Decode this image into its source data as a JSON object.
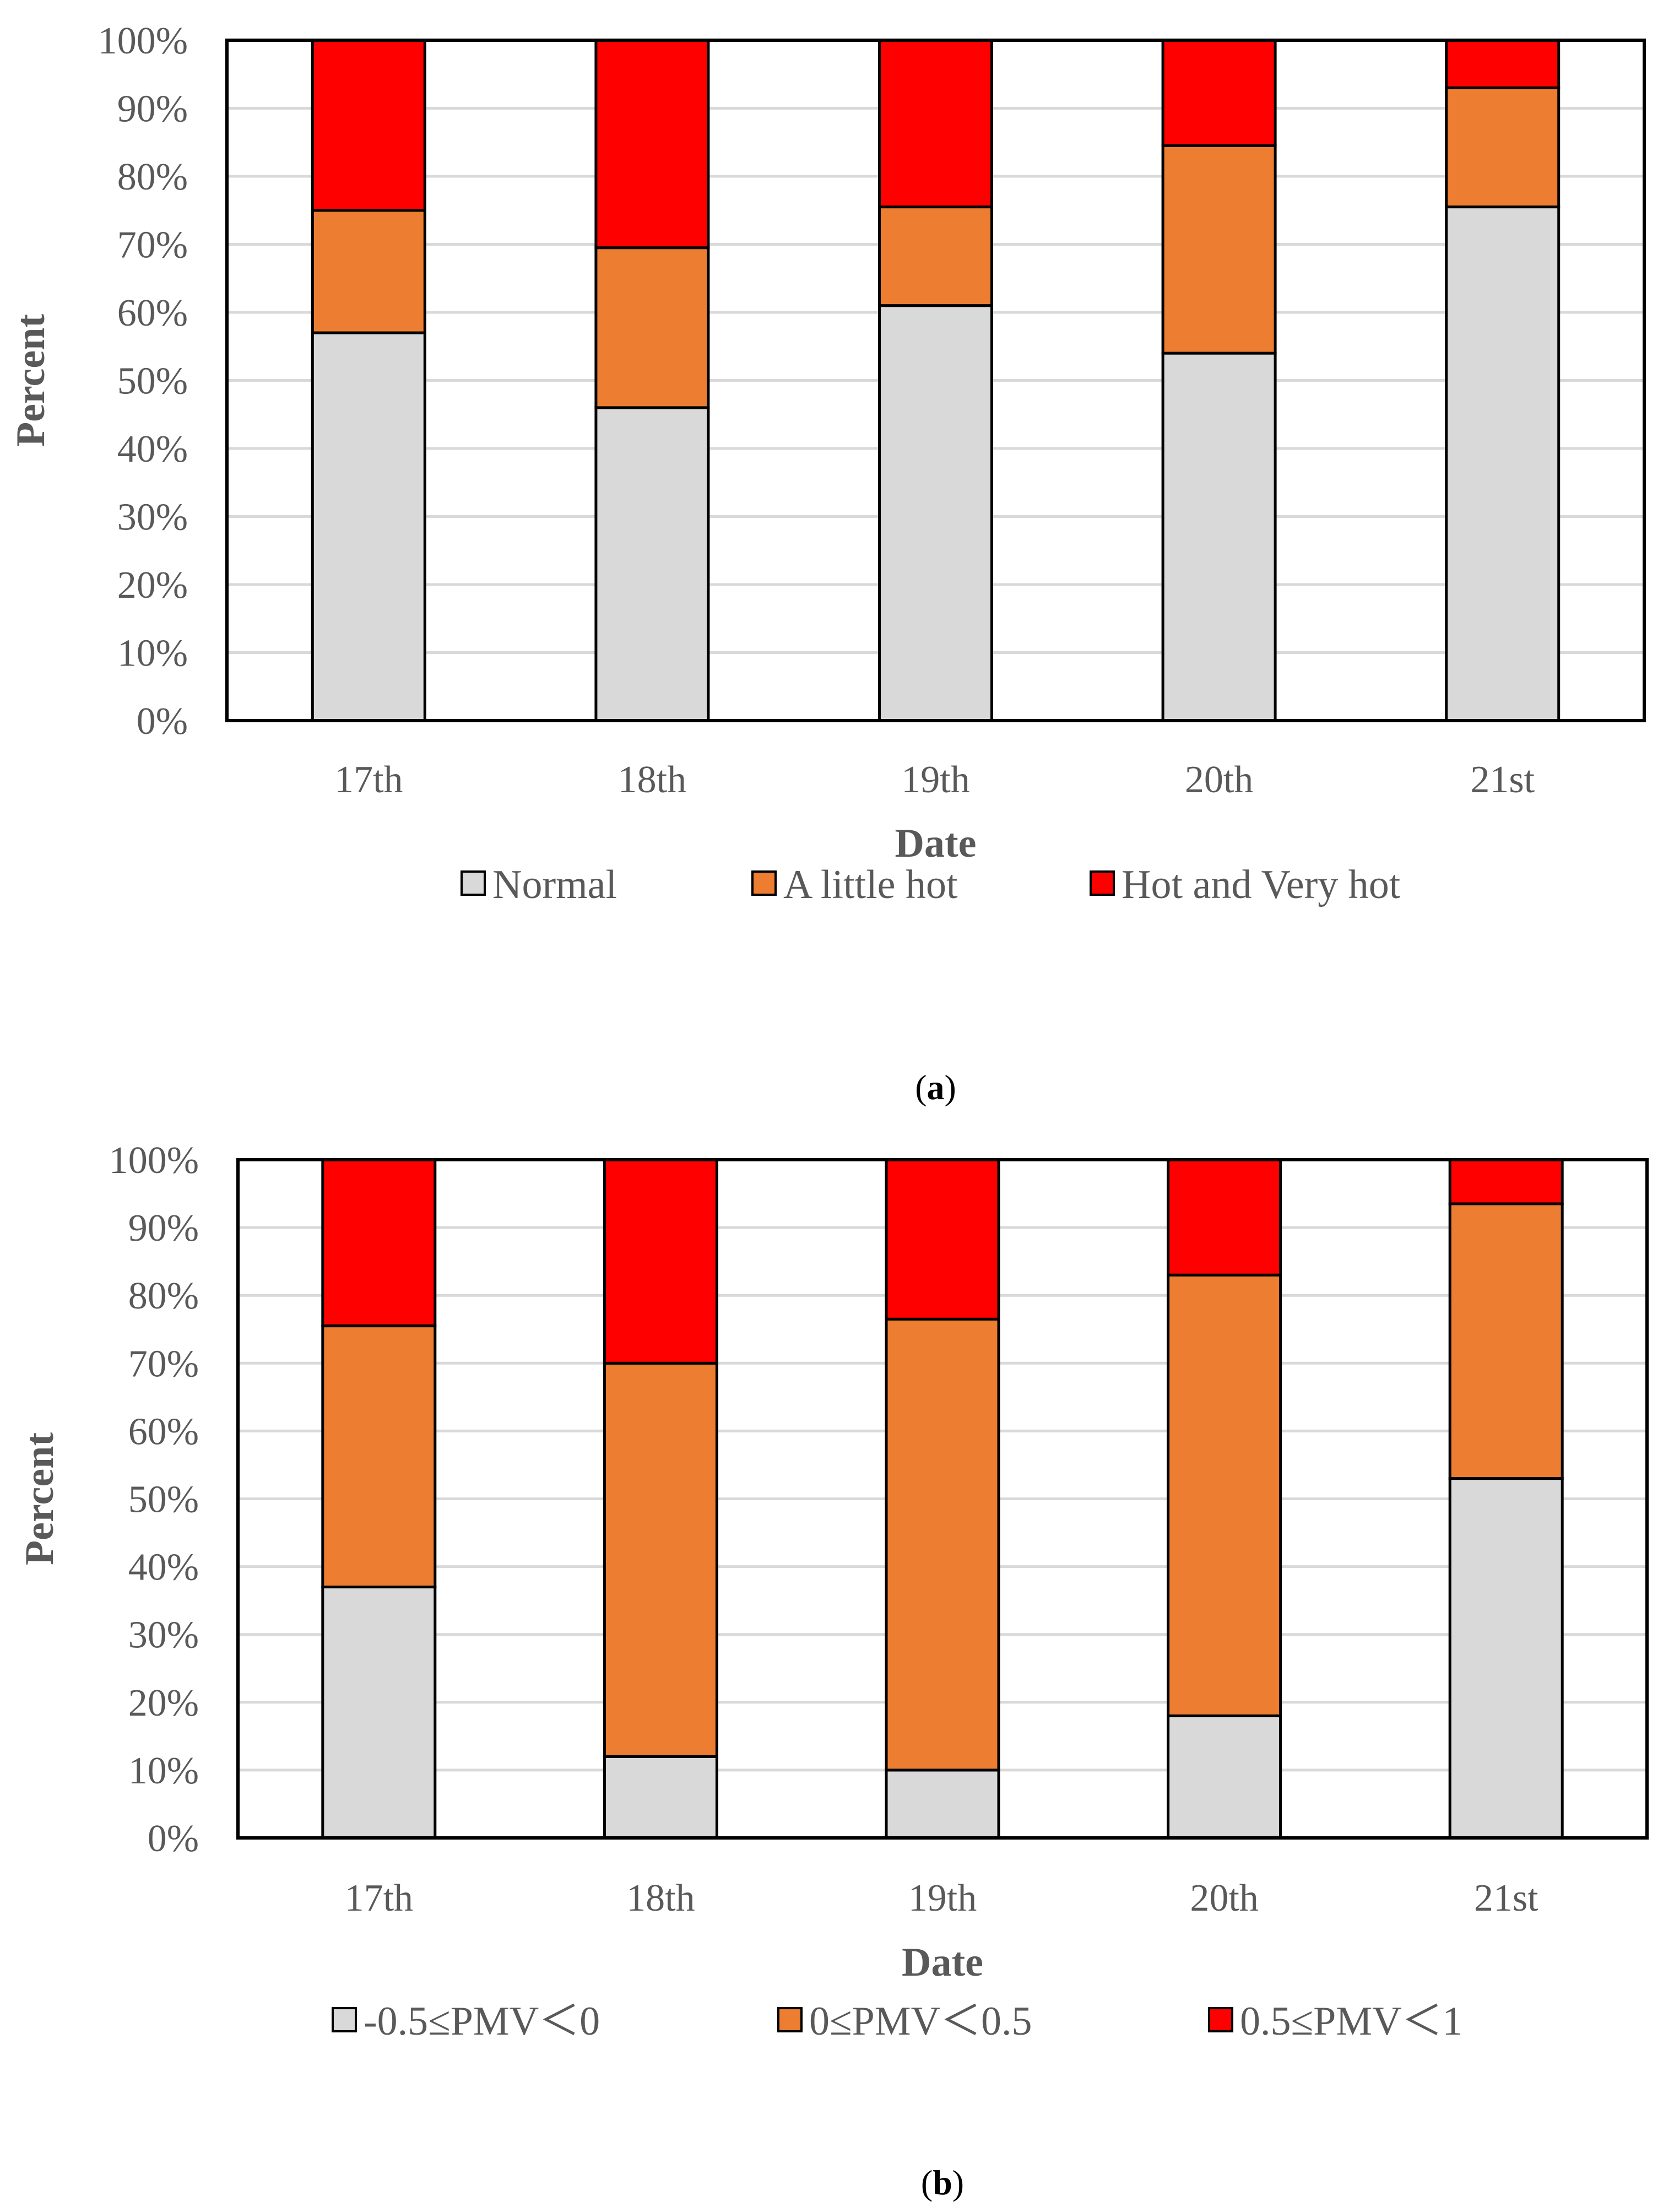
{
  "figure": {
    "panels": [
      {
        "label": "a",
        "caption_open": "(",
        "caption_close": ")",
        "legend": [
          {
            "name": "Normal",
            "color": "#D9D9D9"
          },
          {
            "name": "A little hot",
            "color": "#ED7D31"
          },
          {
            "name": "Hot and Very hot",
            "color": "#FF0000"
          }
        ]
      },
      {
        "label": "b",
        "caption_open": "(",
        "caption_close": ")",
        "legend": [
          {
            "name": "-0.5≤PMV＜0",
            "color": "#D9D9D9"
          },
          {
            "name": "0≤PMV＜0.5",
            "color": "#ED7D31"
          },
          {
            "name": "0.5≤PMV＜1",
            "color": "#FF0000"
          }
        ]
      }
    ]
  },
  "chart_data": [
    {
      "type": "bar",
      "stacked": true,
      "title": "",
      "xlabel": "Date",
      "ylabel": "Percent",
      "ylim": [
        0,
        100
      ],
      "yticks": [
        "0%",
        "10%",
        "20%",
        "30%",
        "40%",
        "50%",
        "60%",
        "70%",
        "80%",
        "90%",
        "100%"
      ],
      "categories": [
        "17th",
        "18th",
        "19th",
        "20th",
        "21st"
      ],
      "grid": true,
      "legend_position": "bottom",
      "series": [
        {
          "name": "Normal",
          "values": [
            57,
            46,
            61,
            54,
            75.5
          ]
        },
        {
          "name": "A little hot",
          "values": [
            18,
            23.5,
            14.5,
            30.5,
            17.5
          ]
        },
        {
          "name": "Hot and Very hot",
          "values": [
            25,
            30.5,
            24.5,
            15.5,
            7
          ]
        }
      ]
    },
    {
      "type": "bar",
      "stacked": true,
      "title": "",
      "xlabel": "Date",
      "ylabel": "Percent",
      "ylim": [
        0,
        100
      ],
      "yticks": [
        "0%",
        "10%",
        "20%",
        "30%",
        "40%",
        "50%",
        "60%",
        "70%",
        "80%",
        "90%",
        "100%"
      ],
      "categories": [
        "17th",
        "18th",
        "19th",
        "20th",
        "21st"
      ],
      "grid": true,
      "legend_position": "bottom",
      "series": [
        {
          "name": "-0.5≤PMV＜0",
          "values": [
            37,
            12,
            10,
            18,
            53
          ]
        },
        {
          "name": "0≤PMV＜0.5",
          "values": [
            38.5,
            58,
            66.5,
            65,
            40.5
          ]
        },
        {
          "name": "0.5≤PMV＜1",
          "values": [
            24.5,
            30,
            23.5,
            17,
            6.5
          ]
        }
      ]
    }
  ]
}
